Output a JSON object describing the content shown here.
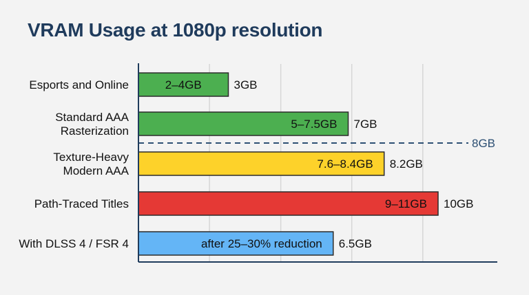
{
  "title": "VRAM Usage at 1080p resolution",
  "chart_data": {
    "type": "bar",
    "orientation": "horizontal",
    "title": "VRAM Usage at 1080p resolution",
    "unit": "GB",
    "categories": [
      "Esports and Online",
      "Standard AAA Rasterization",
      "Texture-Heavy Modern AAA",
      "Path-Traced Titles",
      "With DLSS 4 / FSR 4"
    ],
    "category_lines": [
      [
        "Esports and Online"
      ],
      [
        "Standard AAA",
        "Rasterization"
      ],
      [
        "Texture-Heavy",
        "Modern AAA"
      ],
      [
        "Path-Traced Titles"
      ],
      [
        "With DLSS 4 / FSR 4"
      ]
    ],
    "values": [
      3,
      7,
      8.2,
      10,
      6.5
    ],
    "bar_labels": [
      "2–4GB",
      "5–7.5GB",
      "7.6–8.4GB",
      "9–11GB",
      "after 25–30% reduction"
    ],
    "value_labels": [
      "3GB",
      "7GB",
      "8.2GB",
      "10GB",
      "6.5GB"
    ],
    "colors": [
      "#4caf50",
      "#4caf50",
      "#fdd22a",
      "#e53935",
      "#64b5f6"
    ],
    "reference_line": {
      "value": 8,
      "label": "8GB",
      "style": "dashed",
      "color": "#2c4f73"
    },
    "xlim": [
      0,
      11.5
    ],
    "grid": true,
    "grid_values": [
      2.37,
      4.75,
      7.12,
      9.49
    ]
  }
}
